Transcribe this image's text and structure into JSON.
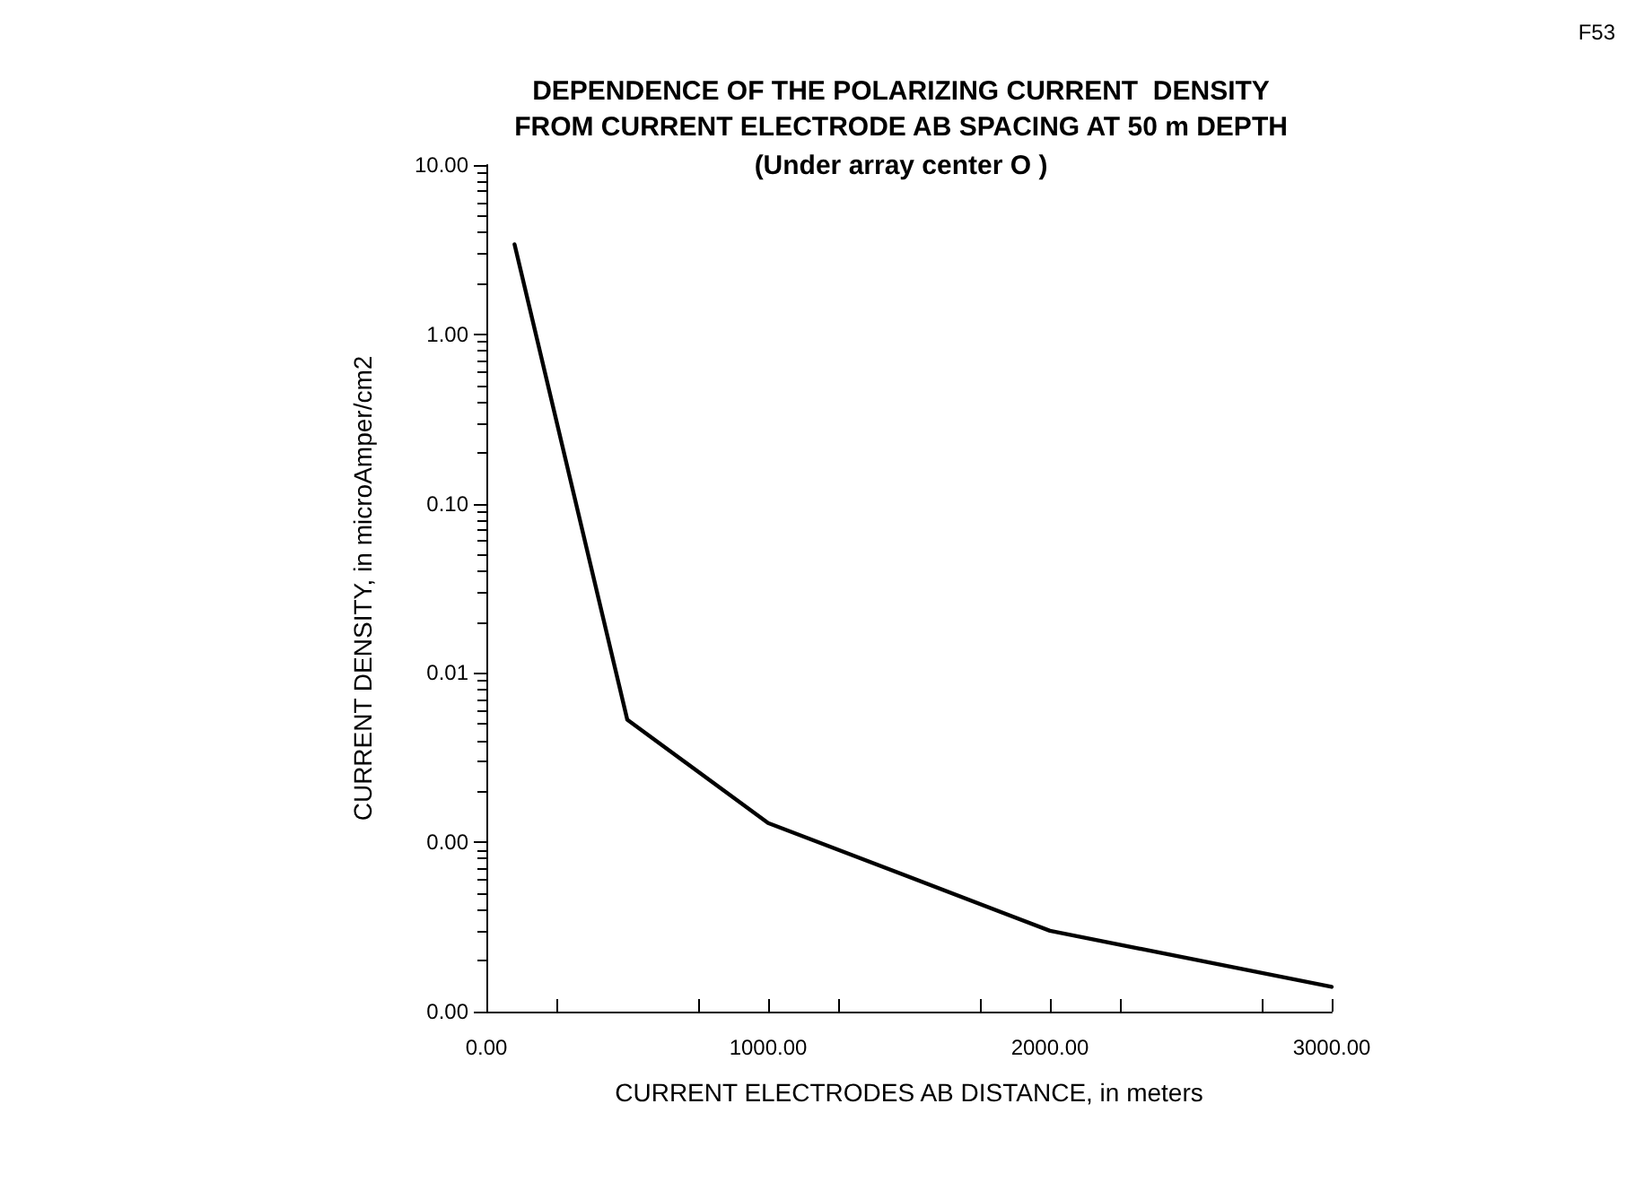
{
  "chart_data": {
    "type": "line",
    "title": "DEPENDENCE OF THE POLARIZING CURRENT  DENSITY\nFROM CURRENT ELECTRODE AB SPACING AT 50 m DEPTH",
    "subtitle": "(Under array center O )",
    "xlabel": "CURRENT ELECTRODES AB DISTANCE, in meters",
    "ylabel": "CURRENT DENSITY, in microAmper/cm2",
    "annotations": [
      "F53"
    ],
    "x": [
      100,
      500,
      1000,
      2000,
      3000
    ],
    "series": [
      {
        "color": "#000000",
        "values": [
          3.4,
          0.0053,
          0.0013,
          0.0003,
          0.00014
        ]
      }
    ],
    "xlim": [
      0,
      3000
    ],
    "xticks": [
      {
        "value": 0,
        "label": "0.00"
      },
      {
        "value": 1000,
        "label": "1000.00"
      },
      {
        "value": 2000,
        "label": "2000.00"
      },
      {
        "value": 3000,
        "label": "3000.00"
      }
    ],
    "ylim": [
      0.0001,
      10
    ],
    "yticks": [
      {
        "value": 0.0001,
        "label": "0.00"
      },
      {
        "value": 0.001,
        "label": "0.00"
      },
      {
        "value": 0.01,
        "label": "0.01"
      },
      {
        "value": 0.1,
        "label": "0.10"
      },
      {
        "value": 1,
        "label": "1.00"
      },
      {
        "value": 10,
        "label": "10.00"
      }
    ],
    "log": "y",
    "grid": false,
    "marker": "none",
    "line_style": "solid"
  }
}
